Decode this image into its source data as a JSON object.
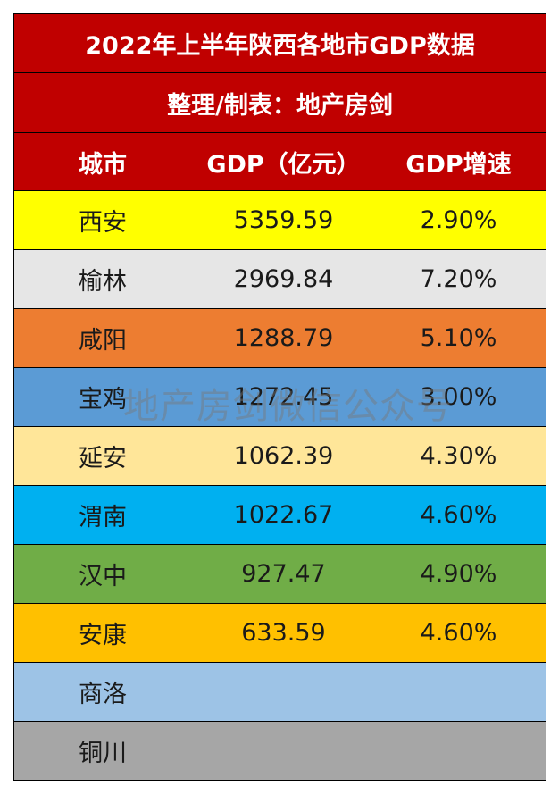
{
  "title": "2022年上半年陕西各地市GDP数据",
  "subtitle": "整理/制表：地产房剑",
  "headers": {
    "city": "城市",
    "gdp": "GDP（亿元）",
    "growth": "GDP增速"
  },
  "rows": [
    {
      "city": "西安",
      "gdp": "5359.59",
      "growth": "2.90%",
      "color": "#ffff00"
    },
    {
      "city": "榆林",
      "gdp": "2969.84",
      "growth": "7.20%",
      "color": "#e6e6e6"
    },
    {
      "city": "咸阳",
      "gdp": "1288.79",
      "growth": "5.10%",
      "color": "#ed7d31"
    },
    {
      "city": "宝鸡",
      "gdp": "1272.45",
      "growth": "3.00%",
      "color": "#5b9bd5"
    },
    {
      "city": "延安",
      "gdp": "1062.39",
      "growth": "4.30%",
      "color": "#ffe699"
    },
    {
      "city": "渭南",
      "gdp": "1022.67",
      "growth": "4.60%",
      "color": "#00b0f0"
    },
    {
      "city": "汉中",
      "gdp": "927.47",
      "growth": "4.90%",
      "color": "#70ad47"
    },
    {
      "city": "安康",
      "gdp": "633.59",
      "growth": "4.60%",
      "color": "#ffc000"
    },
    {
      "city": "商洛",
      "gdp": "",
      "growth": "",
      "color": "#9dc3e6"
    },
    {
      "city": "铜川",
      "gdp": "",
      "growth": "",
      "color": "#a6a6a6"
    }
  ],
  "header_color": "#c00000",
  "watermark": "地产房剑微信公众号"
}
